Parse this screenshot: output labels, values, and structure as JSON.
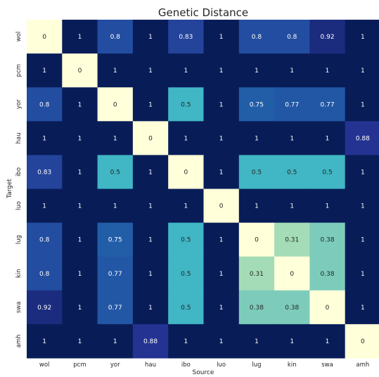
{
  "chart_data": {
    "type": "heatmap",
    "title": "Genetic Distance",
    "xlabel": "Source",
    "ylabel": "Target",
    "x_categories": [
      "wol",
      "pcm",
      "yor",
      "hau",
      "ibo",
      "luo",
      "lug",
      "kin",
      "swa",
      "amh"
    ],
    "y_categories": [
      "wol",
      "pcm",
      "yor",
      "hau",
      "ibo",
      "luo",
      "lug",
      "kin",
      "swa",
      "amh"
    ],
    "values": [
      [
        0,
        1,
        0.8,
        1,
        0.83,
        1,
        0.8,
        0.8,
        0.92,
        1
      ],
      [
        1,
        0,
        1,
        1,
        1,
        1,
        1,
        1,
        1,
        1
      ],
      [
        0.8,
        1,
        0,
        1,
        0.5,
        1,
        0.75,
        0.77,
        0.77,
        1
      ],
      [
        1,
        1,
        1,
        0,
        1,
        1,
        1,
        1,
        1,
        0.88
      ],
      [
        0.83,
        1,
        0.5,
        1,
        0,
        1,
        0.5,
        0.5,
        0.5,
        1
      ],
      [
        1,
        1,
        1,
        1,
        1,
        0,
        1,
        1,
        1,
        1
      ],
      [
        0.8,
        1,
        0.75,
        1,
        0.5,
        1,
        0,
        0.31,
        0.38,
        1
      ],
      [
        0.8,
        1,
        0.77,
        1,
        0.5,
        1,
        0.31,
        0,
        0.38,
        1
      ],
      [
        0.92,
        1,
        0.77,
        1,
        0.5,
        1,
        0.38,
        0.38,
        0,
        1
      ],
      [
        1,
        1,
        1,
        0.88,
        1,
        1,
        1,
        1,
        1,
        0
      ]
    ],
    "colormap": "YlGnBu",
    "vmin": 0,
    "vmax": 1,
    "colorbar": false,
    "annotations": true
  }
}
